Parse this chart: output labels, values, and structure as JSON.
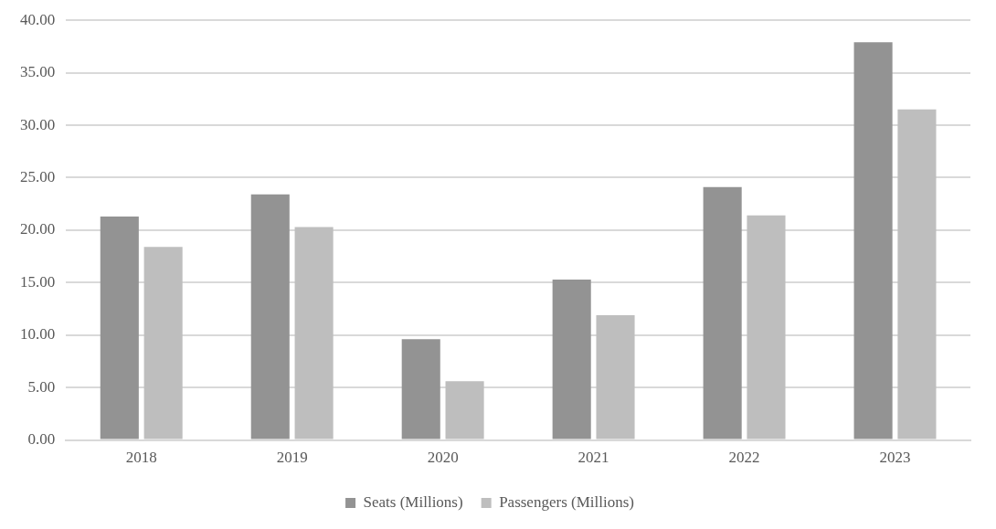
{
  "chart_data": {
    "type": "bar",
    "categories": [
      "2018",
      "2019",
      "2020",
      "2021",
      "2022",
      "2023"
    ],
    "series": [
      {
        "name": "Seats (Millions)",
        "color": "#939393",
        "values": [
          21.3,
          23.4,
          9.6,
          15.3,
          24.1,
          37.9
        ]
      },
      {
        "name": "Passengers (Millions)",
        "color": "#bebebe",
        "values": [
          18.4,
          20.3,
          5.6,
          11.9,
          21.4,
          31.5
        ]
      }
    ],
    "ylim": [
      0,
      40
    ],
    "yticks": [
      {
        "value": 0,
        "label": "0.00"
      },
      {
        "value": 5,
        "label": "5.00"
      },
      {
        "value": 10,
        "label": "10.00"
      },
      {
        "value": 15,
        "label": "15.00"
      },
      {
        "value": 20,
        "label": "20.00"
      },
      {
        "value": 25,
        "label": "25.00"
      },
      {
        "value": 30,
        "label": "30.00"
      },
      {
        "value": 35,
        "label": "35.00"
      },
      {
        "value": 40,
        "label": "40.00"
      }
    ],
    "grid": "y",
    "legend": "bottom"
  }
}
